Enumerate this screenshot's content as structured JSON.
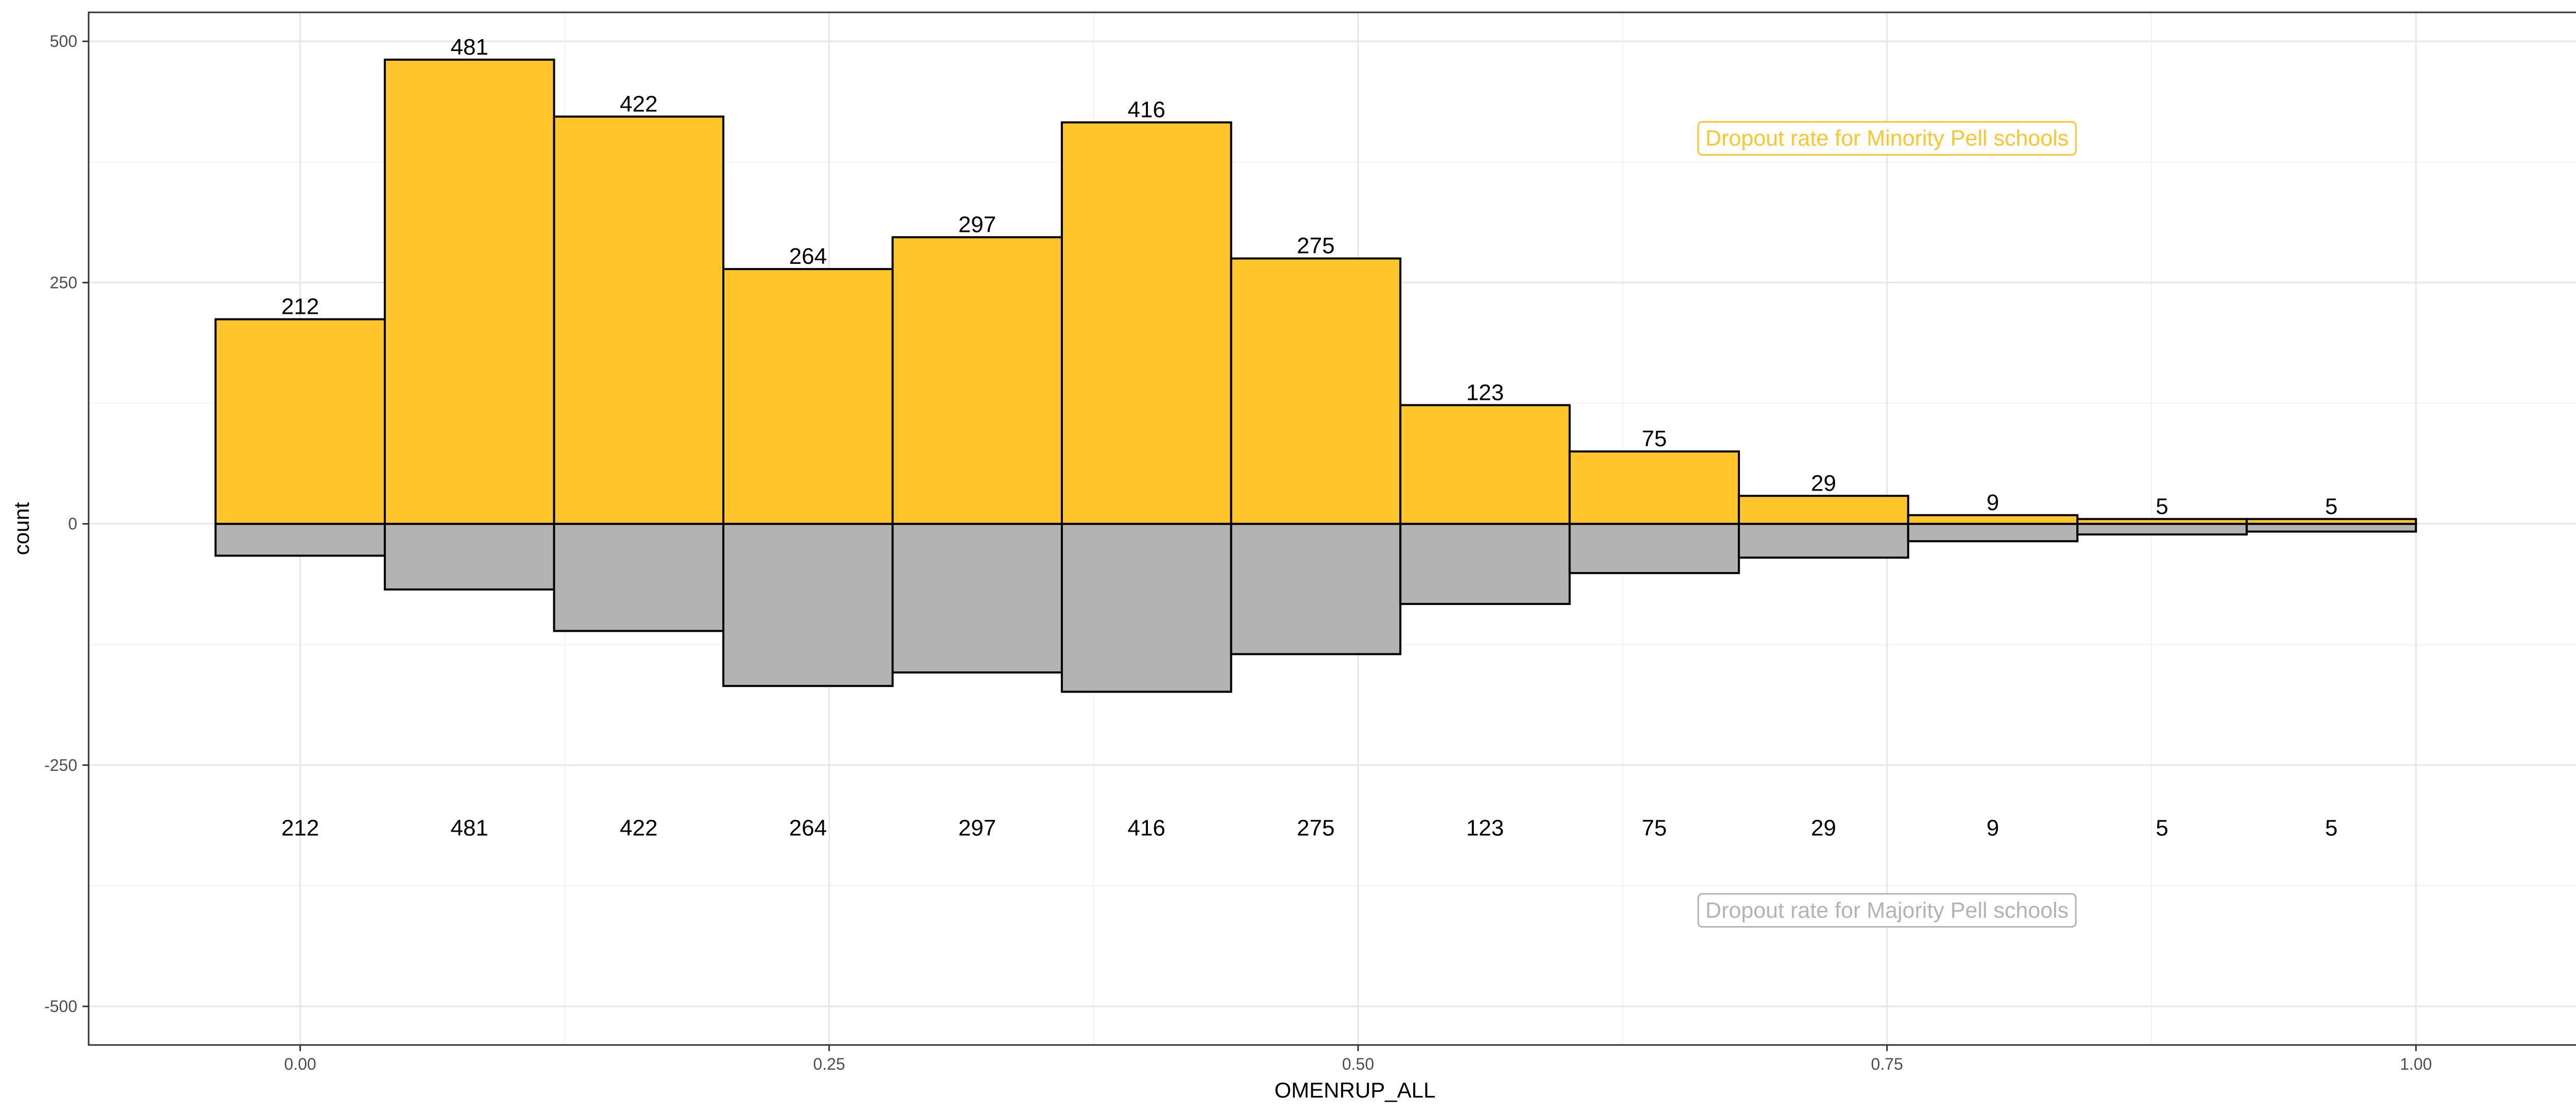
{
  "chart_data": {
    "type": "bar",
    "xlabel": "OMENRUP_ALL",
    "ylabel": "count",
    "xlim": [
      -0.1,
      1.1
    ],
    "ylim": [
      -540,
      530
    ],
    "x_ticks": [
      0.0,
      0.25,
      0.5,
      0.75,
      1.0
    ],
    "x_tick_labels": [
      "0.00",
      "0.25",
      "0.50",
      "0.75",
      "1.00"
    ],
    "y_ticks": [
      500,
      250,
      0,
      -250,
      -500
    ],
    "y_tick_labels": [
      "500",
      "250",
      "0",
      "-250",
      "-500"
    ],
    "grid": true,
    "bin_width": 0.08,
    "bin_centers": [
      0.0,
      0.08,
      0.16,
      0.24,
      0.32,
      0.4,
      0.48,
      0.56,
      0.64,
      0.72,
      0.8,
      0.88,
      0.96
    ],
    "series": [
      {
        "name": "Dropout rate for Minority Pell schools",
        "color": "#FFC52B",
        "values": [
          212,
          481,
          422,
          264,
          297,
          416,
          275,
          123,
          75,
          29,
          9,
          5,
          5
        ],
        "labels": [
          "212",
          "481",
          "422",
          "264",
          "297",
          "416",
          "275",
          "123",
          "75",
          "29",
          "9",
          "5",
          "5"
        ]
      },
      {
        "name": "Dropout rate for Majority Pell schools",
        "color": "#B3B3B3",
        "values": [
          -33,
          -68,
          -111,
          -168,
          -154,
          -174,
          -135,
          -83,
          -51,
          -35,
          -18,
          -11,
          -8
        ]
      }
    ],
    "bottom_labels": [
      "212",
      "481",
      "422",
      "264",
      "297",
      "416",
      "275",
      "123",
      "75",
      "29",
      "9",
      "5",
      "5"
    ],
    "bottom_labels_y": -315,
    "annotations": [
      {
        "text": "Dropout rate for Minority Pell schools",
        "x": 0.75,
        "y": 400,
        "color": "#FFC52B"
      },
      {
        "text": "Dropout rate for Majority Pell schools",
        "x": 0.75,
        "y": -400,
        "color": "#B3B3B3"
      }
    ]
  }
}
